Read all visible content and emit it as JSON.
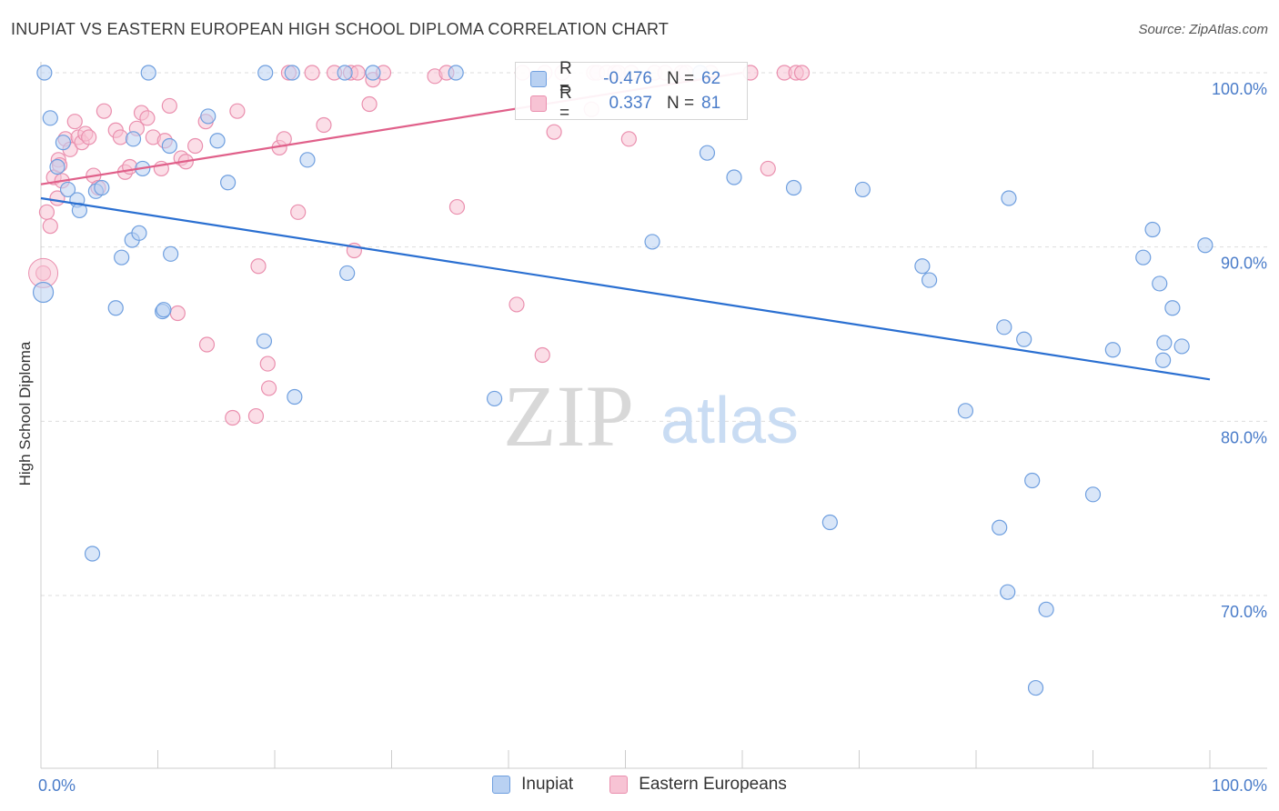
{
  "title": "INUPIAT VS EASTERN EUROPEAN HIGH SCHOOL DIPLOMA CORRELATION CHART",
  "source": "Source: ZipAtlas.com",
  "watermark": {
    "zip": "ZIP",
    "atlas": "atlas"
  },
  "colors": {
    "blue": "#6f9fdf",
    "blue_fill": "#b9d1f2",
    "blue_line": "#2a6fd1",
    "pink": "#ea8fae",
    "pink_fill": "#f7c3d4",
    "pink_line": "#e0608a",
    "tick_text": "#4a7cc9",
    "grid": "#dddddd"
  },
  "legend_top": [
    {
      "r_label": "R =",
      "r_value": "-0.476",
      "n_label": "N =",
      "n_value": "62"
    },
    {
      "r_label": "R =",
      "r_value": "0.337",
      "n_label": "N =",
      "n_value": "81"
    }
  ],
  "legend_bottom": [
    "Inupiat",
    "Eastern Europeans"
  ],
  "chart_data": {
    "type": "scatter",
    "title": "INUPIAT VS EASTERN EUROPEAN HIGH SCHOOL DIPLOMA CORRELATION CHART",
    "ylabel": "High School Diploma",
    "xlabel": "",
    "xlim": [
      0,
      100
    ],
    "ylim": [
      60,
      100
    ],
    "x_tick_labels": [
      "0.0%",
      "100.0%"
    ],
    "y_ticks": [
      70,
      80,
      90,
      100
    ],
    "y_tick_labels": [
      "70.0%",
      "80.0%",
      "90.0%",
      "100.0%"
    ],
    "grid": true,
    "legend_position": "top-center",
    "series": [
      {
        "name": "Inupiat",
        "r": -0.476,
        "n": 62,
        "trend": {
          "x": [
            0,
            100
          ],
          "y": [
            92.8,
            82.4
          ]
        },
        "x": [
          0.3,
          0.8,
          1.4,
          1.9,
          2.3,
          3.1,
          3.3,
          4.4,
          4.7,
          5.2,
          6.4,
          6.9,
          7.8,
          7.9,
          8.4,
          8.7,
          9.2,
          10.4,
          10.5,
          11.0,
          11.1,
          14.3,
          15.1,
          16.0,
          19.1,
          19.2,
          21.5,
          21.7,
          22.8,
          26.0,
          26.2,
          28.4,
          35.5,
          38.8,
          52.3,
          56.4,
          57.0,
          59.3,
          64.4,
          67.5,
          70.3,
          75.4,
          76.0,
          79.1,
          82.0,
          82.4,
          82.7,
          82.8,
          84.1,
          84.8,
          85.1,
          86.0,
          90.0,
          91.7,
          94.3,
          95.1,
          95.7,
          96.0,
          96.1,
          96.8,
          97.6,
          99.6
        ],
        "y": [
          100.0,
          97.4,
          94.6,
          96.0,
          93.3,
          92.7,
          92.1,
          72.4,
          93.2,
          93.4,
          86.5,
          89.4,
          90.4,
          96.2,
          90.8,
          94.5,
          100.0,
          86.3,
          86.4,
          95.8,
          89.6,
          97.5,
          96.1,
          93.7,
          84.6,
          100.0,
          100.0,
          81.4,
          95.0,
          100.0,
          88.5,
          100.0,
          100.0,
          81.3,
          90.3,
          100.0,
          95.4,
          94.0,
          93.4,
          74.2,
          93.3,
          88.9,
          88.1,
          80.6,
          73.9,
          85.4,
          70.2,
          92.8,
          84.7,
          76.6,
          64.7,
          69.2,
          75.8,
          84.1,
          89.4,
          91.0,
          87.9,
          83.5,
          84.5,
          86.5,
          84.3,
          90.1
        ]
      },
      {
        "name": "Eastern Europeans",
        "r": 0.337,
        "n": 81,
        "trend": {
          "x": [
            0,
            60
          ],
          "y": [
            93.6,
            100.0
          ]
        },
        "x": [
          0.2,
          0.5,
          0.8,
          1.1,
          1.4,
          1.5,
          1.6,
          1.8,
          2.1,
          2.5,
          2.9,
          3.2,
          3.5,
          3.8,
          4.1,
          4.5,
          4.9,
          5.4,
          6.4,
          6.8,
          7.2,
          7.6,
          8.2,
          8.6,
          9.1,
          9.6,
          10.3,
          10.6,
          11.0,
          11.7,
          12.0,
          12.4,
          13.2,
          14.1,
          14.2,
          16.4,
          16.8,
          18.4,
          18.6,
          19.4,
          19.5,
          20.4,
          20.8,
          21.2,
          22.0,
          23.2,
          24.2,
          25.1,
          26.5,
          26.8,
          27.1,
          28.1,
          28.4,
          29.3,
          33.7,
          34.7,
          35.6,
          40.7,
          41.2,
          42.9,
          43.1,
          43.9,
          44.6,
          47.1,
          47.3,
          47.6,
          48.4,
          49.1,
          49.4,
          50.3,
          50.5,
          52.5,
          53.4,
          54.8,
          55.2,
          57.3,
          60.7,
          62.2,
          63.6,
          64.6,
          65.1
        ],
        "y": [
          88.5,
          92.0,
          91.2,
          94.0,
          92.8,
          95.0,
          94.7,
          93.8,
          96.2,
          95.6,
          97.2,
          96.3,
          96.0,
          96.5,
          96.3,
          94.1,
          93.4,
          97.8,
          96.7,
          96.3,
          94.3,
          94.6,
          96.8,
          97.7,
          97.4,
          96.3,
          94.5,
          96.1,
          98.1,
          86.2,
          95.1,
          94.9,
          95.8,
          97.2,
          84.4,
          80.2,
          97.8,
          80.3,
          88.9,
          83.3,
          81.9,
          95.7,
          96.2,
          100.0,
          92.0,
          100.0,
          97.0,
          100.0,
          100.0,
          89.8,
          100.0,
          98.2,
          99.6,
          100.0,
          99.8,
          100.0,
          92.3,
          86.7,
          100.0,
          83.8,
          100.0,
          96.6,
          100.0,
          97.9,
          100.0,
          100.0,
          100.0,
          100.0,
          100.0,
          96.2,
          100.0,
          100.0,
          100.0,
          100.0,
          100.0,
          100.0,
          100.0,
          94.5,
          100.0,
          100.0,
          100.0
        ]
      }
    ]
  }
}
